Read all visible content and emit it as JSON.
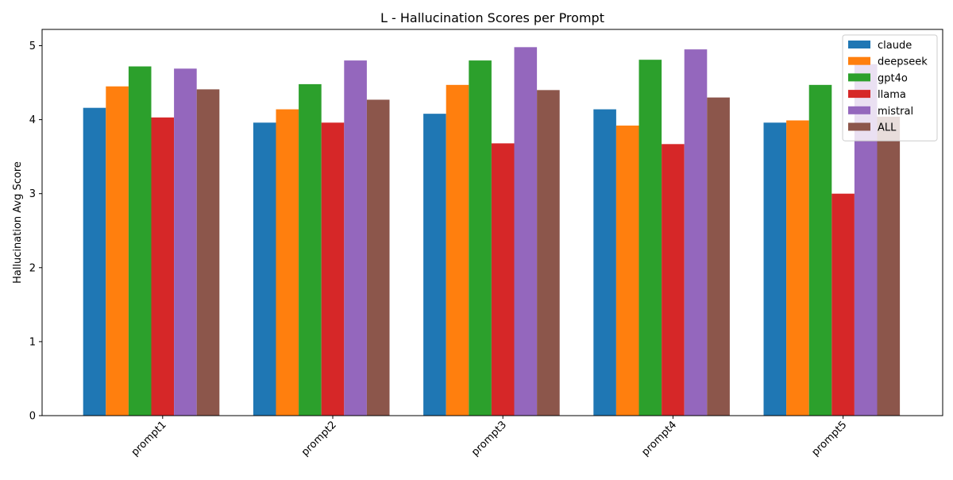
{
  "chart_data": {
    "type": "bar",
    "title": "L - Hallucination Scores per Prompt",
    "xlabel": "",
    "ylabel": "Hallucination Avg Score",
    "categories": [
      "prompt1",
      "prompt2",
      "prompt3",
      "prompt4",
      "prompt5"
    ],
    "ylim": [
      0,
      5.22
    ],
    "yticks": [
      0,
      1,
      2,
      3,
      4,
      5
    ],
    "grid": false,
    "legend_position": "top-right",
    "series": [
      {
        "name": "claude",
        "color": "#1f77b4",
        "values": [
          4.16,
          3.96,
          4.08,
          4.14,
          3.96
        ]
      },
      {
        "name": "deepseek",
        "color": "#ff7f0e",
        "values": [
          4.45,
          4.14,
          4.47,
          3.92,
          3.99
        ]
      },
      {
        "name": "gpt4o",
        "color": "#2ca02c",
        "values": [
          4.72,
          4.48,
          4.8,
          4.81,
          4.47
        ]
      },
      {
        "name": "llama",
        "color": "#d62728",
        "values": [
          4.03,
          3.96,
          3.68,
          3.67,
          3.0
        ]
      },
      {
        "name": "mistral",
        "color": "#9467bd",
        "values": [
          4.69,
          4.8,
          4.98,
          4.95,
          4.75
        ]
      },
      {
        "name": "ALL",
        "color": "#8c564b",
        "values": [
          4.41,
          4.27,
          4.4,
          4.3,
          4.04
        ]
      }
    ]
  }
}
